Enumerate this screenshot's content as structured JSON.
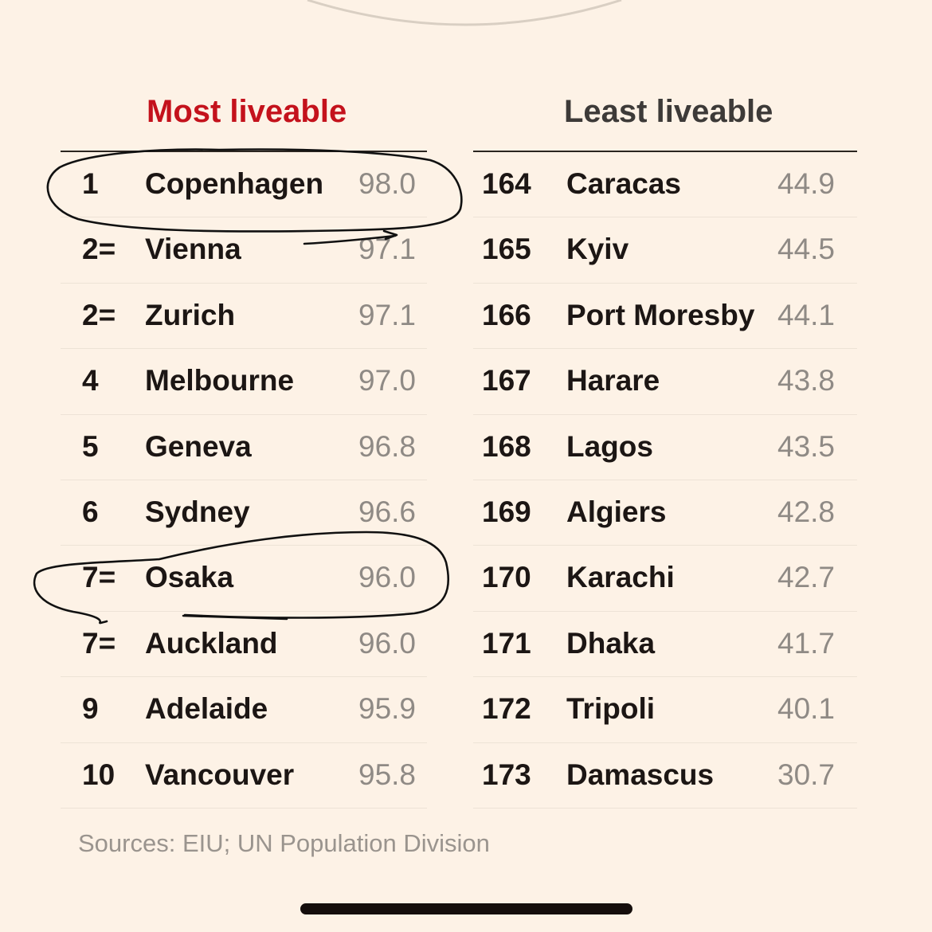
{
  "most_liveable": {
    "title": "Most liveable",
    "title_color": "#c4121c",
    "rows": [
      {
        "rank": "1",
        "city": "Copenhagen",
        "score": "98.0"
      },
      {
        "rank": "2=",
        "city": "Vienna",
        "score": "97.1"
      },
      {
        "rank": "2=",
        "city": "Zurich",
        "score": "97.1"
      },
      {
        "rank": "4",
        "city": "Melbourne",
        "score": "97.0"
      },
      {
        "rank": "5",
        "city": "Geneva",
        "score": "96.8"
      },
      {
        "rank": "6",
        "city": "Sydney",
        "score": "96.6"
      },
      {
        "rank": "7=",
        "city": "Osaka",
        "score": "96.0"
      },
      {
        "rank": "7=",
        "city": "Auckland",
        "score": "96.0"
      },
      {
        "rank": "9",
        "city": "Adelaide",
        "score": "95.9"
      },
      {
        "rank": "10",
        "city": "Vancouver",
        "score": "95.8"
      }
    ]
  },
  "least_liveable": {
    "title": "Least liveable",
    "rows": [
      {
        "rank": "164",
        "city": "Caracas",
        "score": "44.9"
      },
      {
        "rank": "165",
        "city": "Kyiv",
        "score": "44.5"
      },
      {
        "rank": "166",
        "city": "Port Moresby",
        "score": "44.1"
      },
      {
        "rank": "167",
        "city": "Harare",
        "score": "43.8"
      },
      {
        "rank": "168",
        "city": "Lagos",
        "score": "43.5"
      },
      {
        "rank": "169",
        "city": "Algiers",
        "score": "42.8"
      },
      {
        "rank": "170",
        "city": "Karachi",
        "score": "42.7"
      },
      {
        "rank": "171",
        "city": "Dhaka",
        "score": "41.7"
      },
      {
        "rank": "172",
        "city": "Tripoli",
        "score": "40.1"
      },
      {
        "rank": "173",
        "city": "Damascus",
        "score": "30.7"
      }
    ]
  },
  "source": "Sources: EIU; UN Population Division",
  "colors": {
    "background": "#fdf2e6",
    "score_text": "#8f8a85",
    "ink": "#1c1614"
  }
}
